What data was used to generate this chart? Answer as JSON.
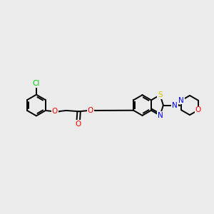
{
  "bg_color": "#ebebeb",
  "bond_color": "#000000",
  "atom_colors": {
    "Cl": "#00cc00",
    "O": "#ff0000",
    "S": "#cccc00",
    "N": "#0000ff",
    "C": "#000000"
  },
  "figsize": [
    3.0,
    3.0
  ],
  "dpi": 100,
  "xlim": [
    0,
    12
  ],
  "ylim": [
    0,
    12
  ]
}
